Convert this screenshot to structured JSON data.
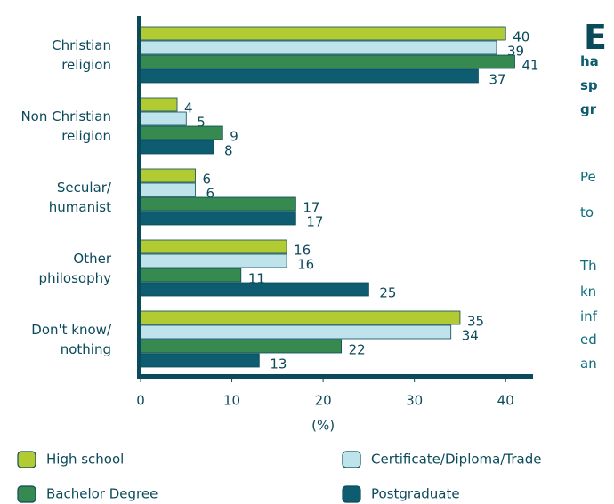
{
  "chart_data": {
    "type": "barh",
    "categories": [
      "Christian religion",
      "Non Christian religion",
      "Secular/ humanist",
      "Other philosophy",
      "Don't know/ nothing"
    ],
    "series": [
      {
        "name": "High school",
        "color": "#b3cb33",
        "values": [
          40,
          4,
          6,
          16,
          35
        ]
      },
      {
        "name": "Certificate/Diploma/Trade",
        "color": "#bfe3ea",
        "values": [
          39,
          5,
          6,
          16,
          34
        ]
      },
      {
        "name": "Bachelor Degree",
        "color": "#368a4f",
        "values": [
          41,
          9,
          17,
          11,
          22
        ]
      },
      {
        "name": "Postgraduate",
        "color": "#0d5c70",
        "values": [
          37,
          8,
          17,
          25,
          13
        ]
      }
    ],
    "xlim": [
      0,
      43
    ],
    "xticks": [
      0,
      10,
      20,
      30,
      40
    ],
    "xlabel": "(%)",
    "grid": false,
    "legend": "bottom"
  },
  "side_text": {
    "heading": "E",
    "subheading": [
      "ha",
      "sp",
      "gr"
    ],
    "paragraphs": [
      [
        "Pe",
        "to"
      ],
      [
        "Th",
        "kn",
        "inf",
        "ed",
        "an"
      ]
    ]
  }
}
